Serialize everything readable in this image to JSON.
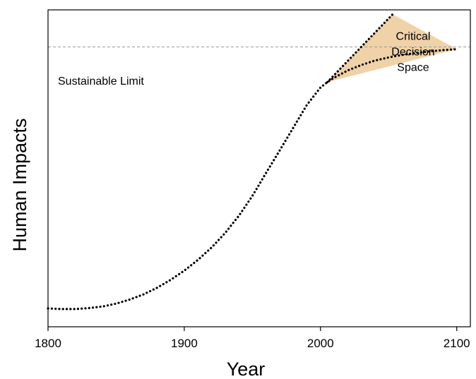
{
  "chart_data": {
    "type": "line",
    "title": "",
    "xlabel": "Year",
    "ylabel": "Human Impacts",
    "xlim": [
      1800,
      2110
    ],
    "ylim": [
      0,
      100
    ],
    "x_ticks": [
      1800,
      1900,
      2000,
      2100
    ],
    "y_ticks": [],
    "grid": false,
    "series": [
      {
        "style": "dotted",
        "color": "#000000",
        "x": [
          1800,
          1810,
          1820,
          1830,
          1840,
          1850,
          1860,
          1870,
          1880,
          1890,
          1900,
          1910,
          1920,
          1930,
          1940,
          1950,
          1960,
          1970,
          1980,
          1990,
          2000,
          2005,
          2010,
          2020,
          2030,
          2040,
          2050,
          2060,
          2070,
          2080,
          2090,
          2100
        ],
        "y": [
          5.8,
          5.6,
          5.6,
          5.9,
          6.4,
          7.3,
          8.6,
          10.2,
          12.3,
          14.8,
          17.7,
          21.1,
          25.0,
          29.6,
          35.0,
          41.3,
          48.5,
          55.6,
          62.8,
          70.0,
          75.5,
          77.2,
          78.6,
          80.9,
          82.6,
          84.0,
          85.0,
          85.8,
          86.4,
          86.9,
          87.3,
          87.6
        ]
      },
      {
        "style": "dotted",
        "color": "#000000",
        "x": [
          2005,
          2053
        ],
        "y": [
          77.2,
          98.6
        ]
      }
    ],
    "reference_lines": [
      {
        "type": "horizontal",
        "y": 88.3,
        "style": "dashed",
        "color": "#999999",
        "label": "Sustainable Limit"
      }
    ],
    "shaded_region": {
      "color": "#f0d2a8",
      "polygon": [
        [
          2005,
          77.2
        ],
        [
          2053,
          98.6
        ],
        [
          2100,
          87.6
        ]
      ],
      "label_lines": [
        "Critical",
        "Decision",
        "Space"
      ]
    }
  }
}
